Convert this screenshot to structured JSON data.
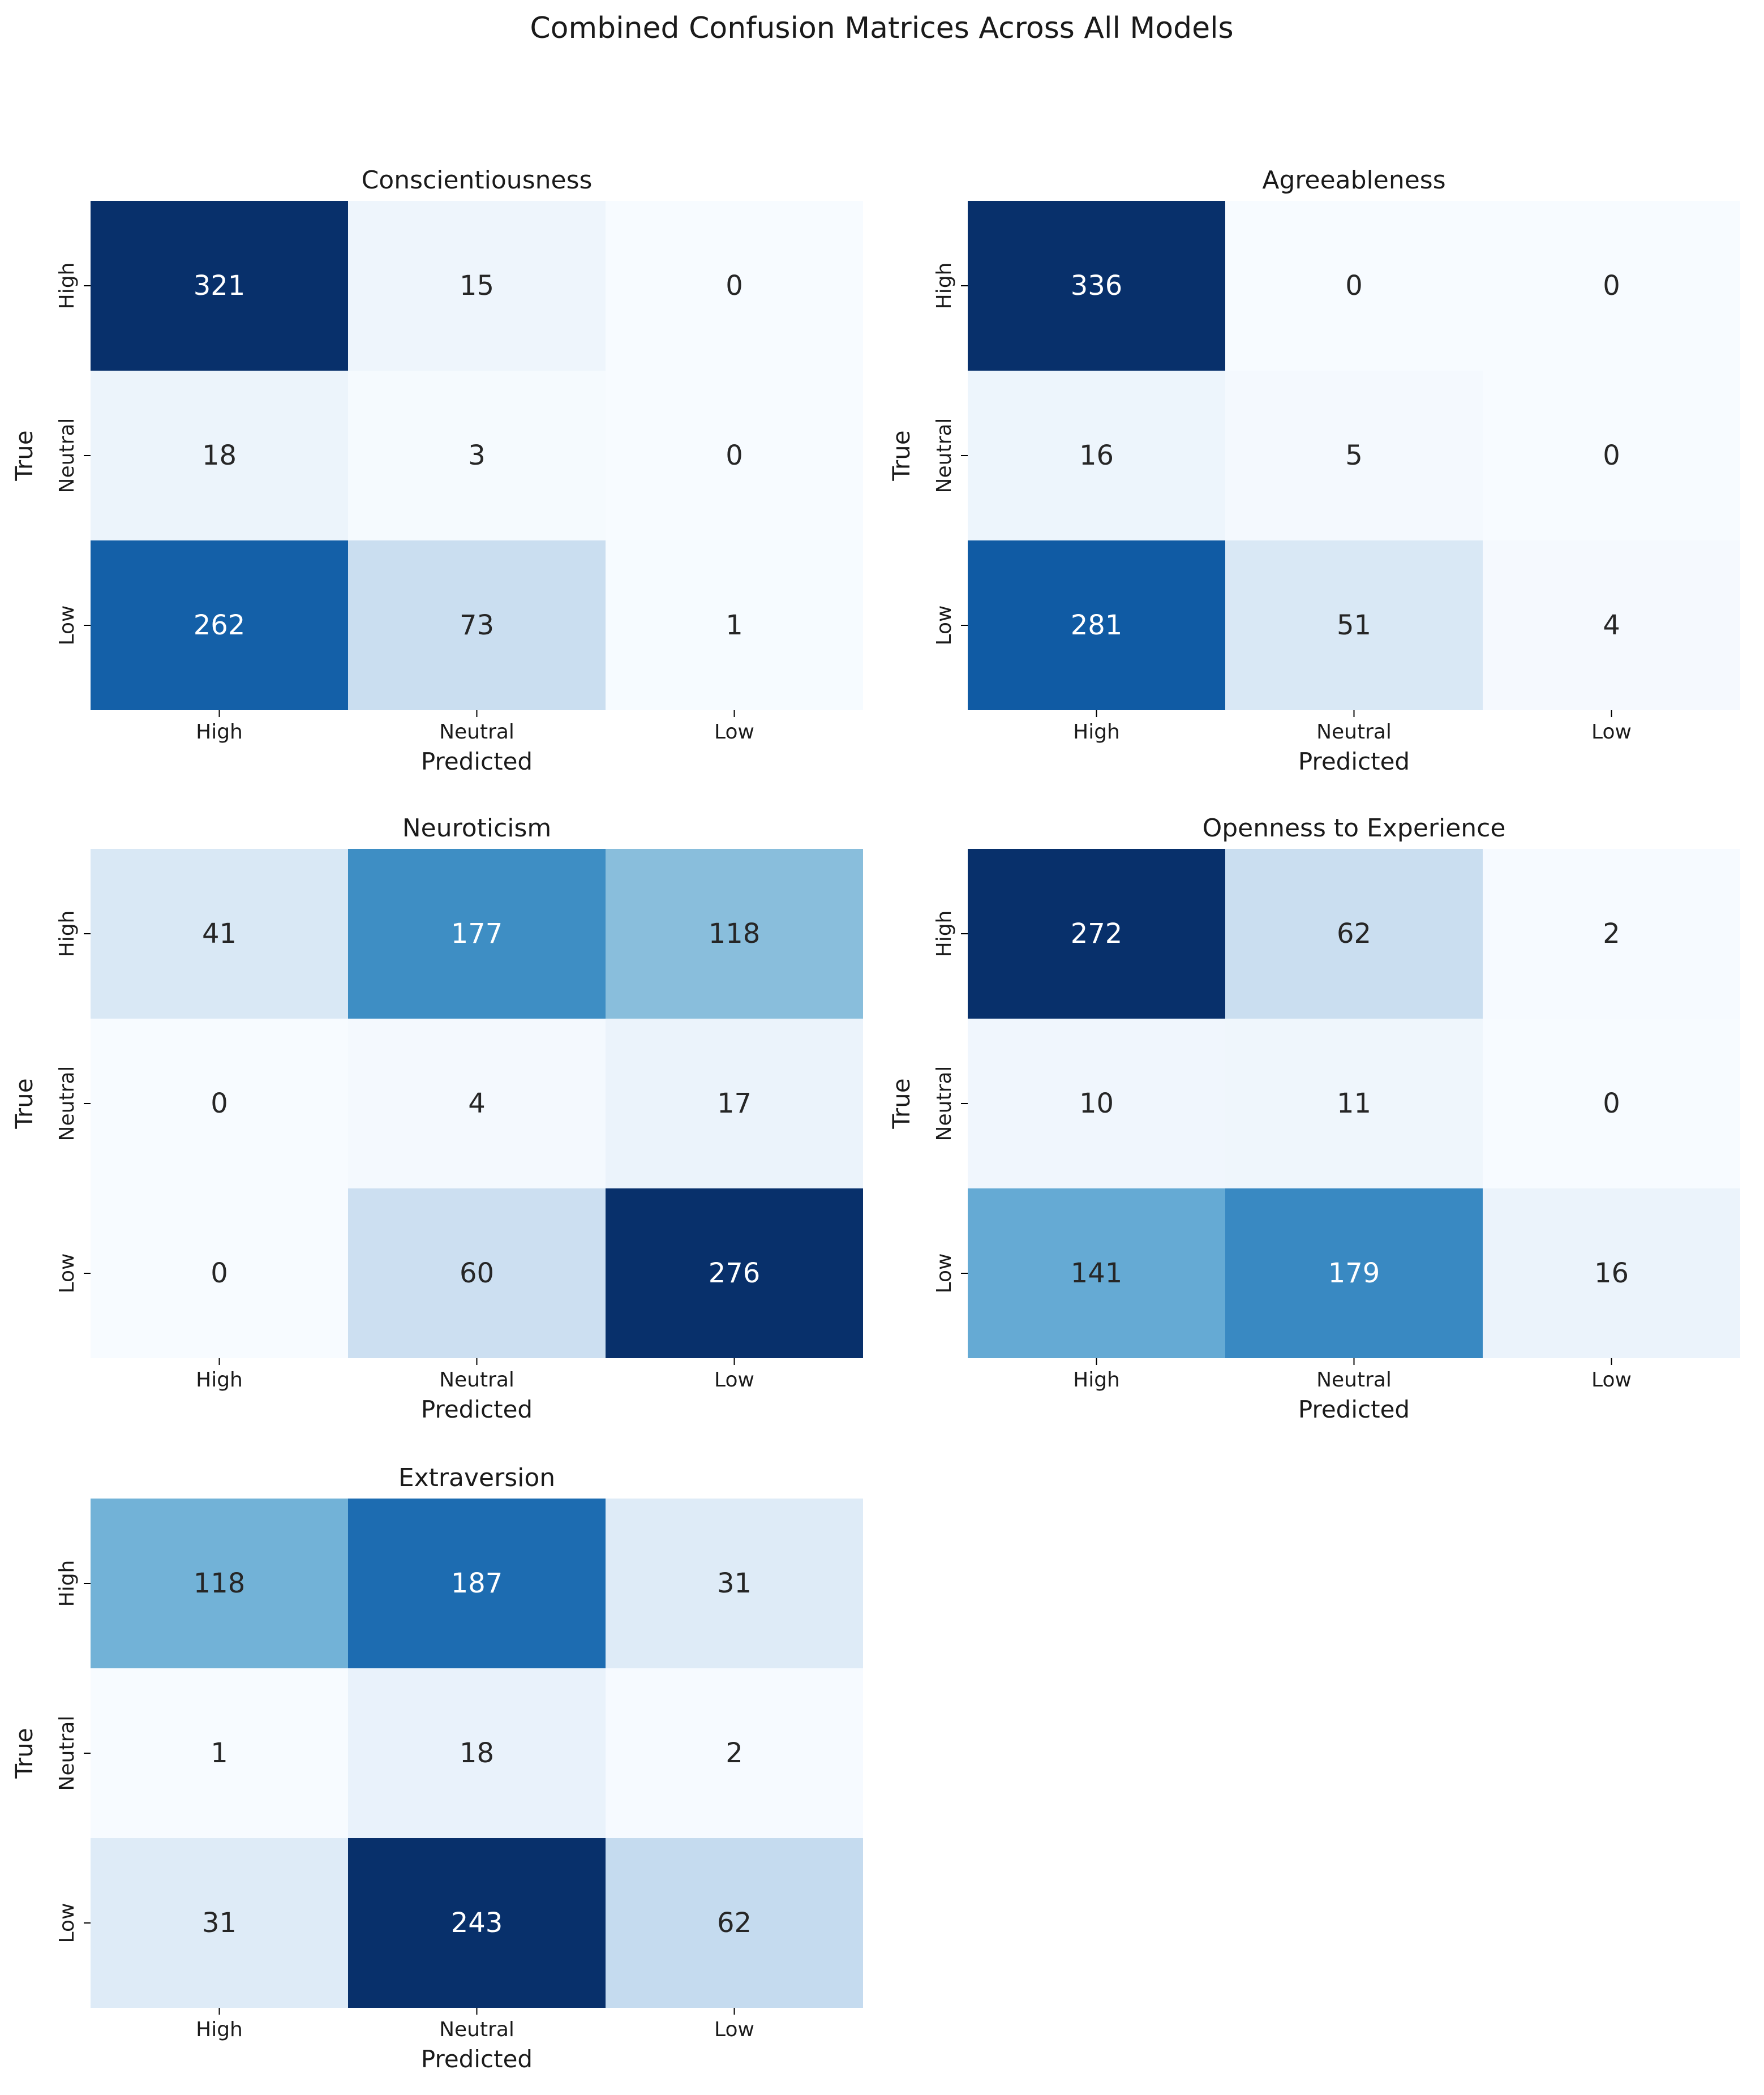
{
  "figure": {
    "title": "Combined Confusion Matrices Across All Models"
  },
  "chart_data": [
    {
      "type": "heatmap",
      "title": "Conscientiousness",
      "xlabel": "Predicted",
      "ylabel": "True",
      "x_categories": [
        "High",
        "Neutral",
        "Low"
      ],
      "y_categories": [
        "High",
        "Neutral",
        "Low"
      ],
      "colormap": "Blues",
      "colorbar": false,
      "values": [
        [
          321,
          15,
          0
        ],
        [
          18,
          3,
          0
        ],
        [
          262,
          73,
          1
        ]
      ]
    },
    {
      "type": "heatmap",
      "title": "Agreeableness",
      "xlabel": "Predicted",
      "ylabel": "True",
      "x_categories": [
        "High",
        "Neutral",
        "Low"
      ],
      "y_categories": [
        "High",
        "Neutral",
        "Low"
      ],
      "colormap": "Blues",
      "colorbar": false,
      "values": [
        [
          336,
          0,
          0
        ],
        [
          16,
          5,
          0
        ],
        [
          281,
          51,
          4
        ]
      ]
    },
    {
      "type": "heatmap",
      "title": "Neuroticism",
      "xlabel": "Predicted",
      "ylabel": "True",
      "x_categories": [
        "High",
        "Neutral",
        "Low"
      ],
      "y_categories": [
        "High",
        "Neutral",
        "Low"
      ],
      "colormap": "Blues",
      "colorbar": false,
      "values": [
        [
          41,
          177,
          118
        ],
        [
          0,
          4,
          17
        ],
        [
          0,
          60,
          276
        ]
      ]
    },
    {
      "type": "heatmap",
      "title": "Openness to Experience",
      "xlabel": "Predicted",
      "ylabel": "True",
      "x_categories": [
        "High",
        "Neutral",
        "Low"
      ],
      "y_categories": [
        "High",
        "Neutral",
        "Low"
      ],
      "colormap": "Blues",
      "colorbar": false,
      "values": [
        [
          272,
          62,
          2
        ],
        [
          10,
          11,
          0
        ],
        [
          141,
          179,
          16
        ]
      ]
    },
    {
      "type": "heatmap",
      "title": "Extraversion",
      "xlabel": "Predicted",
      "ylabel": "True",
      "x_categories": [
        "High",
        "Neutral",
        "Low"
      ],
      "y_categories": [
        "High",
        "Neutral",
        "Low"
      ],
      "colormap": "Blues",
      "colorbar": false,
      "values": [
        [
          118,
          187,
          31
        ],
        [
          1,
          18,
          2
        ],
        [
          31,
          243,
          62
        ]
      ]
    }
  ]
}
